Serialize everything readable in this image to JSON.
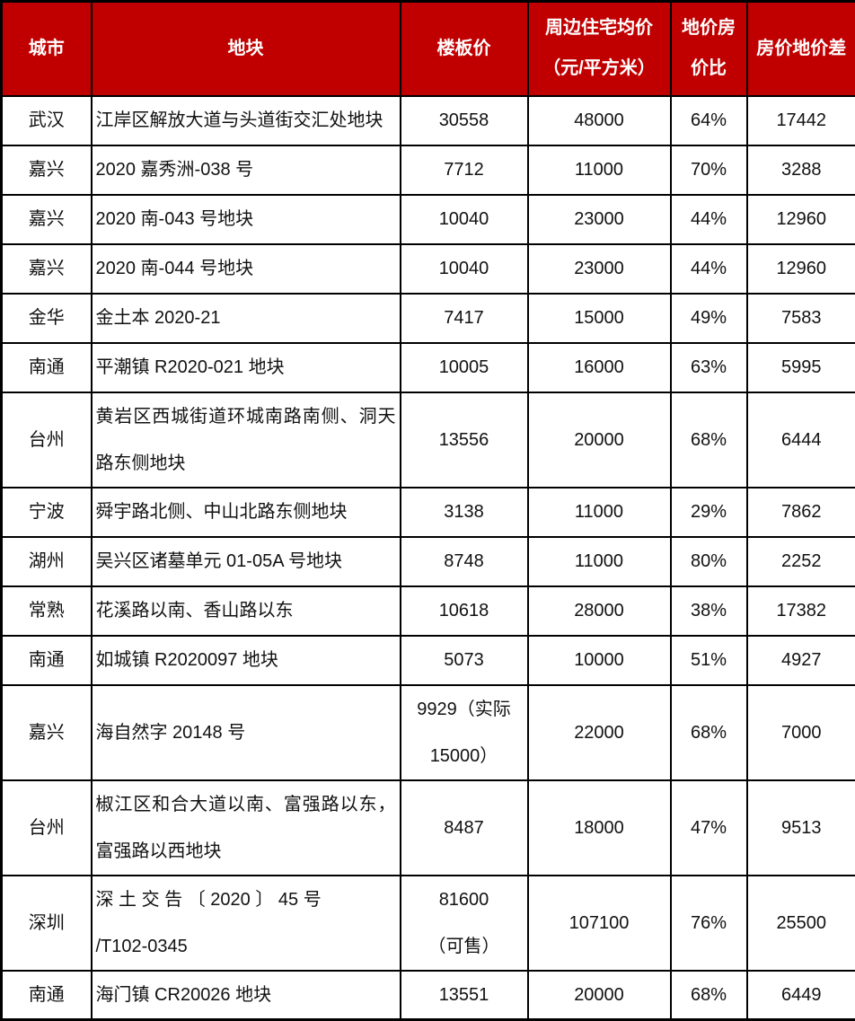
{
  "accent_color": "#C00000",
  "chart_data": {
    "type": "table",
    "title": "",
    "columns": [
      "城市",
      "地块",
      "楼板价",
      "周边住宅均价\n（元/平方米）",
      "地价房\n价比",
      "房价地价差"
    ],
    "rows": [
      [
        "武汉",
        "江岸区解放大道与头道街交汇处地块",
        "30558",
        "48000",
        "64%",
        "17442"
      ],
      [
        "嘉兴",
        "2020 嘉秀洲-038 号",
        "7712",
        "11000",
        "70%",
        "3288"
      ],
      [
        "嘉兴",
        "2020 南-043 号地块",
        "10040",
        "23000",
        "44%",
        "12960"
      ],
      [
        "嘉兴",
        "2020 南-044 号地块",
        "10040",
        "23000",
        "44%",
        "12960"
      ],
      [
        "金华",
        "金土本 2020-21",
        "7417",
        "15000",
        "49%",
        "7583"
      ],
      [
        "南通",
        "平潮镇 R2020-021 地块",
        "10005",
        "16000",
        "63%",
        "5995"
      ],
      [
        "台州",
        "黄岩区西城街道环城南路南侧、洞天路东侧地块",
        "13556",
        "20000",
        "68%",
        "6444"
      ],
      [
        "宁波",
        "舜宇路北侧、中山北路东侧地块",
        "3138",
        "11000",
        "29%",
        "7862"
      ],
      [
        "湖州",
        "吴兴区诸墓单元 01-05A 号地块",
        "8748",
        "11000",
        "80%",
        "2252"
      ],
      [
        "常熟",
        "花溪路以南、香山路以东",
        "10618",
        "28000",
        "38%",
        "17382"
      ],
      [
        "南通",
        "如城镇 R2020097 地块",
        "5073",
        "10000",
        "51%",
        "4927"
      ],
      [
        "嘉兴",
        "海自然字 20148 号",
        "9929（实际\n15000）",
        "22000",
        "68%",
        "7000"
      ],
      [
        "台州",
        "椒江区和合大道以南、富强路以东，富强路以西地块",
        "8487",
        "18000",
        "47%",
        "9513"
      ],
      [
        "深圳",
        "深 土 交 告 〔 2020 〕 45  号\n/T102-0345",
        "81600\n（可售）",
        "107100",
        "76%",
        "25500"
      ],
      [
        "南通",
        "海门镇 CR20026 地块",
        "13551",
        "20000",
        "68%",
        "6449"
      ]
    ]
  }
}
